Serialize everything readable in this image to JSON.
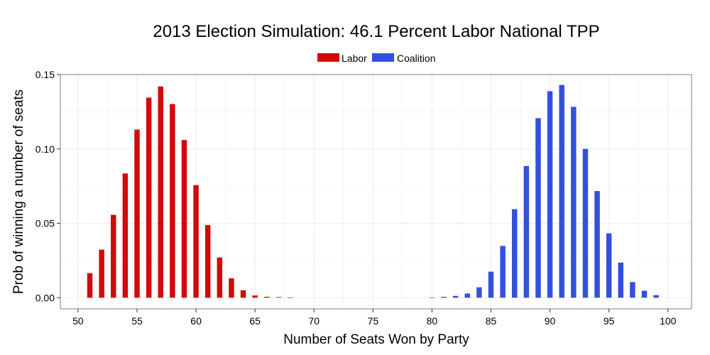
{
  "chart_data": {
    "type": "bar",
    "title": "2013 Election Simulation: 46.1 Percent Labor National TPP",
    "xlabel": "Number of Seats Won by Party",
    "ylabel": "Prob of winning a number of seats",
    "xlim": [
      48.5,
      102
    ],
    "ylim": [
      -0.0075,
      0.15
    ],
    "xticks": [
      50,
      55,
      60,
      65,
      70,
      75,
      80,
      85,
      90,
      95,
      100
    ],
    "yticks": [
      0.0,
      0.05,
      0.1,
      0.15
    ],
    "ytick_labels": [
      "0.00",
      "0.05",
      "0.10",
      "0.15"
    ],
    "grid": true,
    "legend": {
      "position": "top-center",
      "entries": [
        "Labor",
        "Coalition"
      ]
    },
    "series": [
      {
        "name": "Labor",
        "color": "#d10a0a",
        "x": [
          51,
          52,
          53,
          54,
          55,
          56,
          57,
          58,
          59,
          60,
          61,
          62,
          63,
          64,
          65,
          66,
          67,
          68
        ],
        "values": [
          0.0165,
          0.0323,
          0.0557,
          0.0835,
          0.113,
          0.1345,
          0.142,
          0.1302,
          0.106,
          0.0757,
          0.0488,
          0.027,
          0.013,
          0.005,
          0.0015,
          0.0006,
          0.0004,
          0.0001
        ]
      },
      {
        "name": "Coalition",
        "color": "#3350dd",
        "x": [
          80,
          81,
          82,
          83,
          84,
          85,
          86,
          87,
          88,
          89,
          90,
          91,
          92,
          93,
          94,
          95,
          96,
          97,
          98,
          99
        ],
        "values": [
          0.0001,
          0.0006,
          0.0012,
          0.0028,
          0.007,
          0.0175,
          0.0348,
          0.0595,
          0.0885,
          0.1207,
          0.1388,
          0.143,
          0.1283,
          0.1,
          0.0717,
          0.0433,
          0.0236,
          0.0105,
          0.0047,
          0.0017
        ]
      }
    ]
  }
}
